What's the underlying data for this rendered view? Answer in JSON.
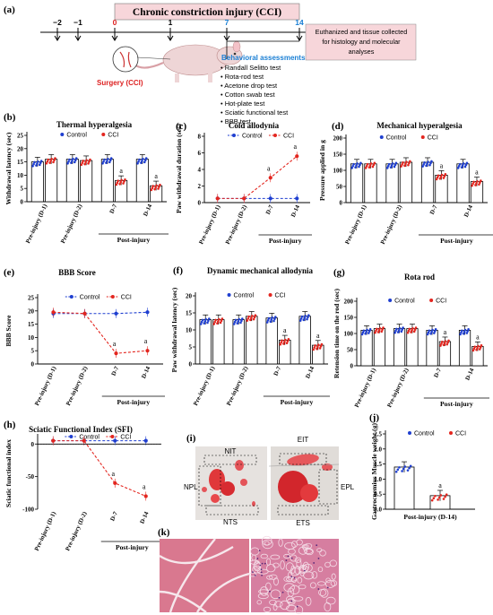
{
  "panel_a": {
    "letter": "(a)",
    "banner": "Chronic constriction injury (CCI)",
    "timeline_ticks": [
      "−2",
      "−1",
      "0",
      "1",
      "7",
      "14"
    ],
    "surgery_label": "Surgery (CCI)",
    "end_box_text": [
      "Euthanized and tissue collected",
      "for histology and molecular",
      "analyses"
    ],
    "behavioral_title": "Behavioral assessments",
    "behavioral_tests": [
      "Randall Selitto test",
      "Rota-rod test",
      "Acetone drop test",
      "Cotton swab test",
      "Hot-plate test",
      "Sciatic functional test",
      "BBB test"
    ]
  },
  "legend": {
    "control": "Control",
    "cci": "CCI"
  },
  "post_injury": "Post-injury",
  "sig_letter": "a",
  "colors": {
    "control": "#1f3fd0",
    "cci": "#e3261f",
    "banner": "#f7d6da",
    "timeline_accent": "#d22",
    "seven": "#1a7fd4",
    "box": "#f7d6da"
  },
  "chart_data": [
    {
      "id": "b",
      "letter": "(b)",
      "type": "bar",
      "title": "Thermal hyperalgesia",
      "ylabel": "Withdrawal latency (sec)",
      "ylim": [
        0,
        25
      ],
      "yticks": [
        0,
        5,
        10,
        15,
        20,
        25
      ],
      "categories": [
        "Pre-injury (D-1)",
        "Pre-injury (D-2)",
        "D-7",
        "D-14"
      ],
      "series": [
        {
          "name": "Control",
          "values": [
            15,
            16,
            16,
            16
          ]
        },
        {
          "name": "CCI",
          "values": [
            16,
            15.5,
            8,
            6
          ]
        }
      ],
      "significant": [
        false,
        false,
        true,
        true
      ]
    },
    {
      "id": "c",
      "letter": "(c)",
      "type": "line",
      "title": "Cold allodynia",
      "ylabel": "Paw withdrawal duration (sec)",
      "ylim": [
        0,
        8
      ],
      "yticks": [
        0,
        2,
        4,
        6,
        8
      ],
      "categories": [
        "Pre-injury (D-1)",
        "Pre-injury (D-2)",
        "D-7",
        "D-14"
      ],
      "series": [
        {
          "name": "Control",
          "values": [
            0.5,
            0.5,
            0.5,
            0.5
          ]
        },
        {
          "name": "CCI",
          "values": [
            0.5,
            0.5,
            3.0,
            5.6
          ]
        }
      ],
      "significant": [
        false,
        false,
        true,
        true
      ]
    },
    {
      "id": "d",
      "letter": "(d)",
      "type": "bar",
      "title": "Mechanical hyperalgesia",
      "ylabel": "Pressure applied in g",
      "ylim": [
        0,
        200
      ],
      "yticks": [
        0,
        50,
        100,
        150,
        200
      ],
      "categories": [
        "Pre-injury (D-1)",
        "Pre-injury (D-2)",
        "D-7",
        "D-14"
      ],
      "series": [
        {
          "name": "Control",
          "values": [
            120,
            120,
            125,
            120
          ]
        },
        {
          "name": "CCI",
          "values": [
            120,
            125,
            85,
            65
          ]
        }
      ],
      "significant": [
        false,
        false,
        true,
        true
      ]
    },
    {
      "id": "e",
      "letter": "(e)",
      "type": "line",
      "title": "BBB Score",
      "ylabel": "BBB Score",
      "ylim": [
        0,
        25
      ],
      "yticks": [
        0,
        5,
        10,
        15,
        20,
        25
      ],
      "categories": [
        "Pre-injury (D-1)",
        "Pre-injury (D-2)",
        "D-7",
        "D-14"
      ],
      "series": [
        {
          "name": "Control",
          "values": [
            19,
            19,
            19,
            19.5
          ]
        },
        {
          "name": "CCI",
          "values": [
            19.5,
            19,
            4,
            5
          ]
        }
      ],
      "significant": [
        false,
        false,
        true,
        true
      ]
    },
    {
      "id": "f",
      "letter": "(f)",
      "type": "bar",
      "title": "Dynamic mechanical allodynia",
      "ylabel": "Paw withdrawal latency (sec)",
      "ylim": [
        0,
        20
      ],
      "yticks": [
        0,
        5,
        10,
        15,
        20
      ],
      "categories": [
        "Pre-injury (D-1)",
        "Pre-injury (D-2)",
        "D-7",
        "D-14"
      ],
      "series": [
        {
          "name": "Control",
          "values": [
            13,
            13,
            13.5,
            14
          ]
        },
        {
          "name": "CCI",
          "values": [
            13,
            14,
            7,
            5.5
          ]
        }
      ],
      "significant": [
        false,
        false,
        true,
        true
      ]
    },
    {
      "id": "g",
      "letter": "(g)",
      "type": "bar",
      "title": "Rota rod",
      "ylabel": "Retension time on the rod (sec)",
      "ylim": [
        0,
        200
      ],
      "yticks": [
        0,
        50,
        100,
        150,
        200
      ],
      "categories": [
        "Pre-injury (D-1)",
        "Pre-injury (D-2)",
        "D-7",
        "D-14"
      ],
      "series": [
        {
          "name": "Control",
          "values": [
            110,
            115,
            110,
            110
          ]
        },
        {
          "name": "CCI",
          "values": [
            115,
            115,
            75,
            60
          ]
        }
      ],
      "significant": [
        false,
        false,
        true,
        true
      ]
    },
    {
      "id": "h",
      "letter": "(h)",
      "type": "line",
      "title": "Sciatic Functional Index (SFI)",
      "ylabel": "Sciatic functional index",
      "ylim": [
        -100,
        10
      ],
      "yticks": [
        0,
        -50,
        -100
      ],
      "categories": [
        "Pre-injury (D-1)",
        "Pre-injury (D-2)",
        "D-7",
        "D-14"
      ],
      "series": [
        {
          "name": "Control",
          "values": [
            5,
            5,
            5,
            5
          ]
        },
        {
          "name": "CCI",
          "values": [
            5,
            5,
            -60,
            -80
          ]
        }
      ],
      "significant": [
        false,
        false,
        true,
        true
      ]
    },
    {
      "id": "j",
      "letter": "(j)",
      "type": "bar",
      "title": "",
      "ylabel": "Gastrocnemius Muscle weight (g)",
      "ylim": [
        0,
        2.5
      ],
      "yticks": [
        0.0,
        0.5,
        1.0,
        1.5,
        2.0,
        2.5
      ],
      "categories": [
        "Post-injury (D-14)"
      ],
      "series": [
        {
          "name": "Control",
          "values": [
            1.4
          ]
        },
        {
          "name": "CCI",
          "values": [
            0.45
          ]
        }
      ],
      "significant": [
        true
      ]
    }
  ],
  "panel_i": {
    "letter": "(i)",
    "labels": {
      "nit": "NIT",
      "npl": "NPL",
      "nts": "NTS",
      "eit": "EIT",
      "epl": "EPL",
      "ets": "ETS"
    }
  },
  "panel_k": {
    "letter": "(k)"
  }
}
